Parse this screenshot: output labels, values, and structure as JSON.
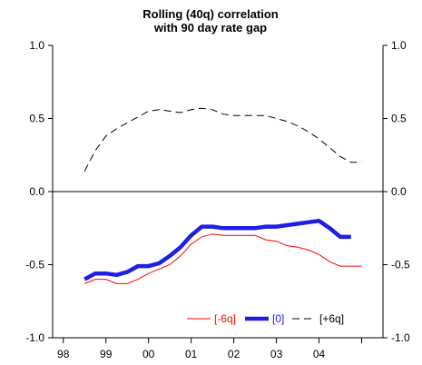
{
  "chart_data": {
    "type": "line",
    "title": "Rolling (40q) correlation",
    "subtitle": "with 90 day rate gap",
    "xlabel": "",
    "ylabel": "",
    "ylim": [
      -1.0,
      1.0
    ],
    "yticks": [
      "-1.0",
      "-0.5",
      "0.0",
      "0.5",
      "1.0"
    ],
    "xticks": [
      "98",
      "99",
      "00",
      "01",
      "02",
      "03",
      "04"
    ],
    "x_range": [
      1997.75,
      2005.5
    ],
    "grid": false,
    "legend_position": "bottom-right",
    "series": [
      {
        "name": "[-6q]",
        "color": "#ff0000",
        "style": "solid-thin",
        "x": [
          1998.5,
          1998.75,
          1999.0,
          1999.25,
          1999.5,
          1999.75,
          2000.0,
          2000.25,
          2000.5,
          2000.75,
          2001.0,
          2001.25,
          2001.5,
          2001.75,
          2002.0,
          2002.25,
          2002.5,
          2002.75,
          2003.0,
          2003.25,
          2003.5,
          2003.75,
          2004.0,
          2004.25,
          2004.5,
          2004.75,
          2005.0
        ],
        "values": [
          -0.63,
          -0.6,
          -0.6,
          -0.63,
          -0.63,
          -0.6,
          -0.56,
          -0.53,
          -0.5,
          -0.44,
          -0.36,
          -0.31,
          -0.29,
          -0.3,
          -0.3,
          -0.3,
          -0.3,
          -0.33,
          -0.34,
          -0.37,
          -0.38,
          -0.4,
          -0.43,
          -0.48,
          -0.51,
          -0.51,
          -0.51
        ]
      },
      {
        "name": "[0]",
        "color": "#1e1ee6",
        "style": "solid-thick",
        "x": [
          1998.5,
          1998.75,
          1999.0,
          1999.25,
          1999.5,
          1999.75,
          2000.0,
          2000.25,
          2000.5,
          2000.75,
          2001.0,
          2001.25,
          2001.5,
          2001.75,
          2002.0,
          2002.25,
          2002.5,
          2002.75,
          2003.0,
          2003.25,
          2003.5,
          2003.75,
          2004.0,
          2004.25,
          2004.5,
          2004.75
        ],
        "values": [
          -0.6,
          -0.56,
          -0.56,
          -0.57,
          -0.55,
          -0.51,
          -0.51,
          -0.49,
          -0.44,
          -0.38,
          -0.3,
          -0.24,
          -0.24,
          -0.25,
          -0.25,
          -0.25,
          -0.25,
          -0.24,
          -0.24,
          -0.23,
          -0.22,
          -0.21,
          -0.2,
          -0.25,
          -0.31,
          -0.31
        ]
      },
      {
        "name": "[+6q]",
        "color": "#000000",
        "style": "dashed",
        "x": [
          1998.5,
          1998.75,
          1999.0,
          1999.25,
          1999.5,
          1999.75,
          2000.0,
          2000.25,
          2000.5,
          2000.75,
          2001.0,
          2001.25,
          2001.5,
          2001.75,
          2002.0,
          2002.25,
          2002.5,
          2002.75,
          2003.0,
          2003.25,
          2003.5,
          2003.75,
          2004.0,
          2004.25,
          2004.5,
          2004.75,
          2005.0
        ],
        "values": [
          0.14,
          0.28,
          0.38,
          0.43,
          0.47,
          0.51,
          0.55,
          0.56,
          0.55,
          0.54,
          0.56,
          0.57,
          0.56,
          0.53,
          0.52,
          0.52,
          0.52,
          0.52,
          0.5,
          0.48,
          0.45,
          0.41,
          0.36,
          0.3,
          0.24,
          0.2,
          0.2
        ]
      }
    ]
  }
}
